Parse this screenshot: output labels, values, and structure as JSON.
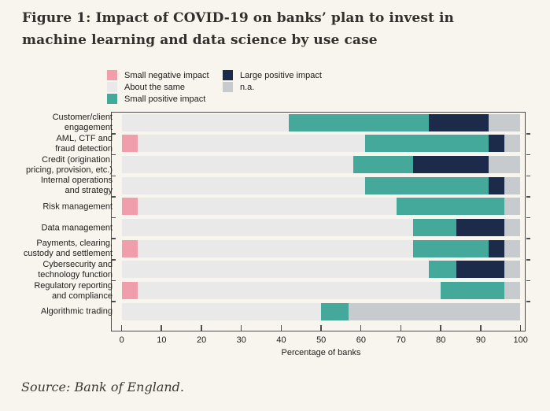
{
  "title": "Figure 1: Impact of COVID-19 on banks’ plan to invest in\nmachine learning and data science by use case",
  "source": "Source: Bank of England.",
  "colors": {
    "background": "#f8f5ee",
    "title_text": "#32302d",
    "chart_text": "#21201e",
    "axis": "#4d4d4d",
    "Small negative impact": "#f09dac",
    "About the same": "#e9e9e9",
    "Small positive impact": "#44a89b",
    "Large positive impact": "#1c2b4a",
    "n.a.": "#c8cbce"
  },
  "legend": {
    "columns": [
      [
        "Small negative impact",
        "About the same",
        "Small positive impact"
      ],
      [
        "Large positive impact",
        "n.a."
      ]
    ]
  },
  "chart_data": {
    "type": "bar",
    "stacked": true,
    "orientation": "horizontal",
    "title": "Figure 1: Impact of COVID-19 on banks’ plan to invest in machine learning and data science by use case",
    "xlabel": "Percentage of banks",
    "xlim": [
      0,
      100
    ],
    "xticks": [
      0,
      10,
      20,
      30,
      40,
      50,
      60,
      70,
      80,
      90,
      100
    ],
    "grid": false,
    "legend_position": "top",
    "categories": [
      "Customer/client engagement",
      "AML, CTF and fraud detection",
      "Credit (origination, pricing, provision, etc.)",
      "Internal operations and strategy",
      "Risk management",
      "Data management",
      "Payments, clearing, custody and settlement",
      "Cybersecurity and technology function",
      "Regulatory reporting and compliance",
      "Algorithmic trading"
    ],
    "category_display": [
      "Customer/client\nengagement",
      "AML, CTF and\nfraud detection",
      "Credit (origination,\npricing, provision, etc.)",
      "Internal operations\nand strategy",
      "Risk management",
      "Data management",
      "Payments, clearing,\ncustody and settlement",
      "Cybersecurity and\ntechnology function",
      "Regulatory reporting\nand compliance",
      "Algorithmic trading"
    ],
    "series": [
      {
        "name": "Small negative impact",
        "values": [
          0,
          4,
          0,
          0,
          4,
          0,
          4,
          0,
          4,
          0
        ]
      },
      {
        "name": "About the same",
        "values": [
          42,
          57,
          58,
          61,
          65,
          73,
          69,
          77,
          76,
          50
        ]
      },
      {
        "name": "Small positive impact",
        "values": [
          35,
          31,
          15,
          31,
          27,
          11,
          19,
          7,
          16,
          7
        ]
      },
      {
        "name": "Large positive impact",
        "values": [
          15,
          4,
          19,
          4,
          0,
          12,
          4,
          12,
          0,
          0
        ]
      },
      {
        "name": "n.a.",
        "values": [
          8,
          4,
          8,
          4,
          4,
          4,
          4,
          4,
          4,
          43
        ]
      }
    ]
  }
}
